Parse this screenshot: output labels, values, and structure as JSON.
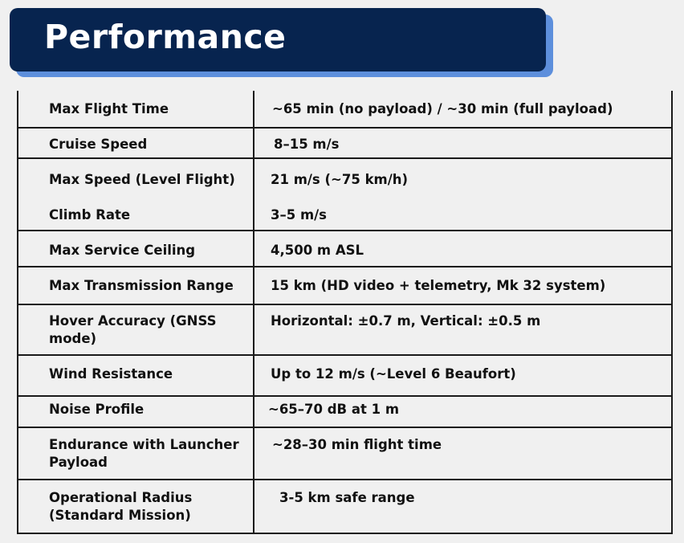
{
  "title": "Performance",
  "specs": [
    {
      "label": "Max Flight Time",
      "value": "~65 min (no payload) / ~30 min (full payload)"
    },
    {
      "label": "Cruise Speed",
      "value": "8–15 m/s"
    },
    {
      "label": "Max Speed (Level Flight)",
      "value": "21 m/s (~75 km/h)"
    },
    {
      "label": "Climb Rate",
      "value": "3–5 m/s"
    },
    {
      "label": "Max Service Ceiling",
      "value": "4,500 m ASL"
    },
    {
      "label": "Max Transmission Range",
      "value": "15 km (HD video + telemetry, Mk 32 system)"
    },
    {
      "label": "Hover Accuracy (GNSS\nmode)",
      "value": "Horizontal: ±0.7 m, Vertical: ±0.5 m"
    },
    {
      "label": "Wind Resistance",
      "value": "Up to 12 m/s (~Level 6 Beaufort)"
    },
    {
      "label": "Noise Profile",
      "value": "~65–70 dB at 1 m"
    },
    {
      "label": "Endurance with Launcher\nPayload",
      "value": "~28–30 min flight time"
    },
    {
      "label": "Operational Radius\n(Standard Mission)",
      "value": "3-5 km safe range"
    }
  ]
}
